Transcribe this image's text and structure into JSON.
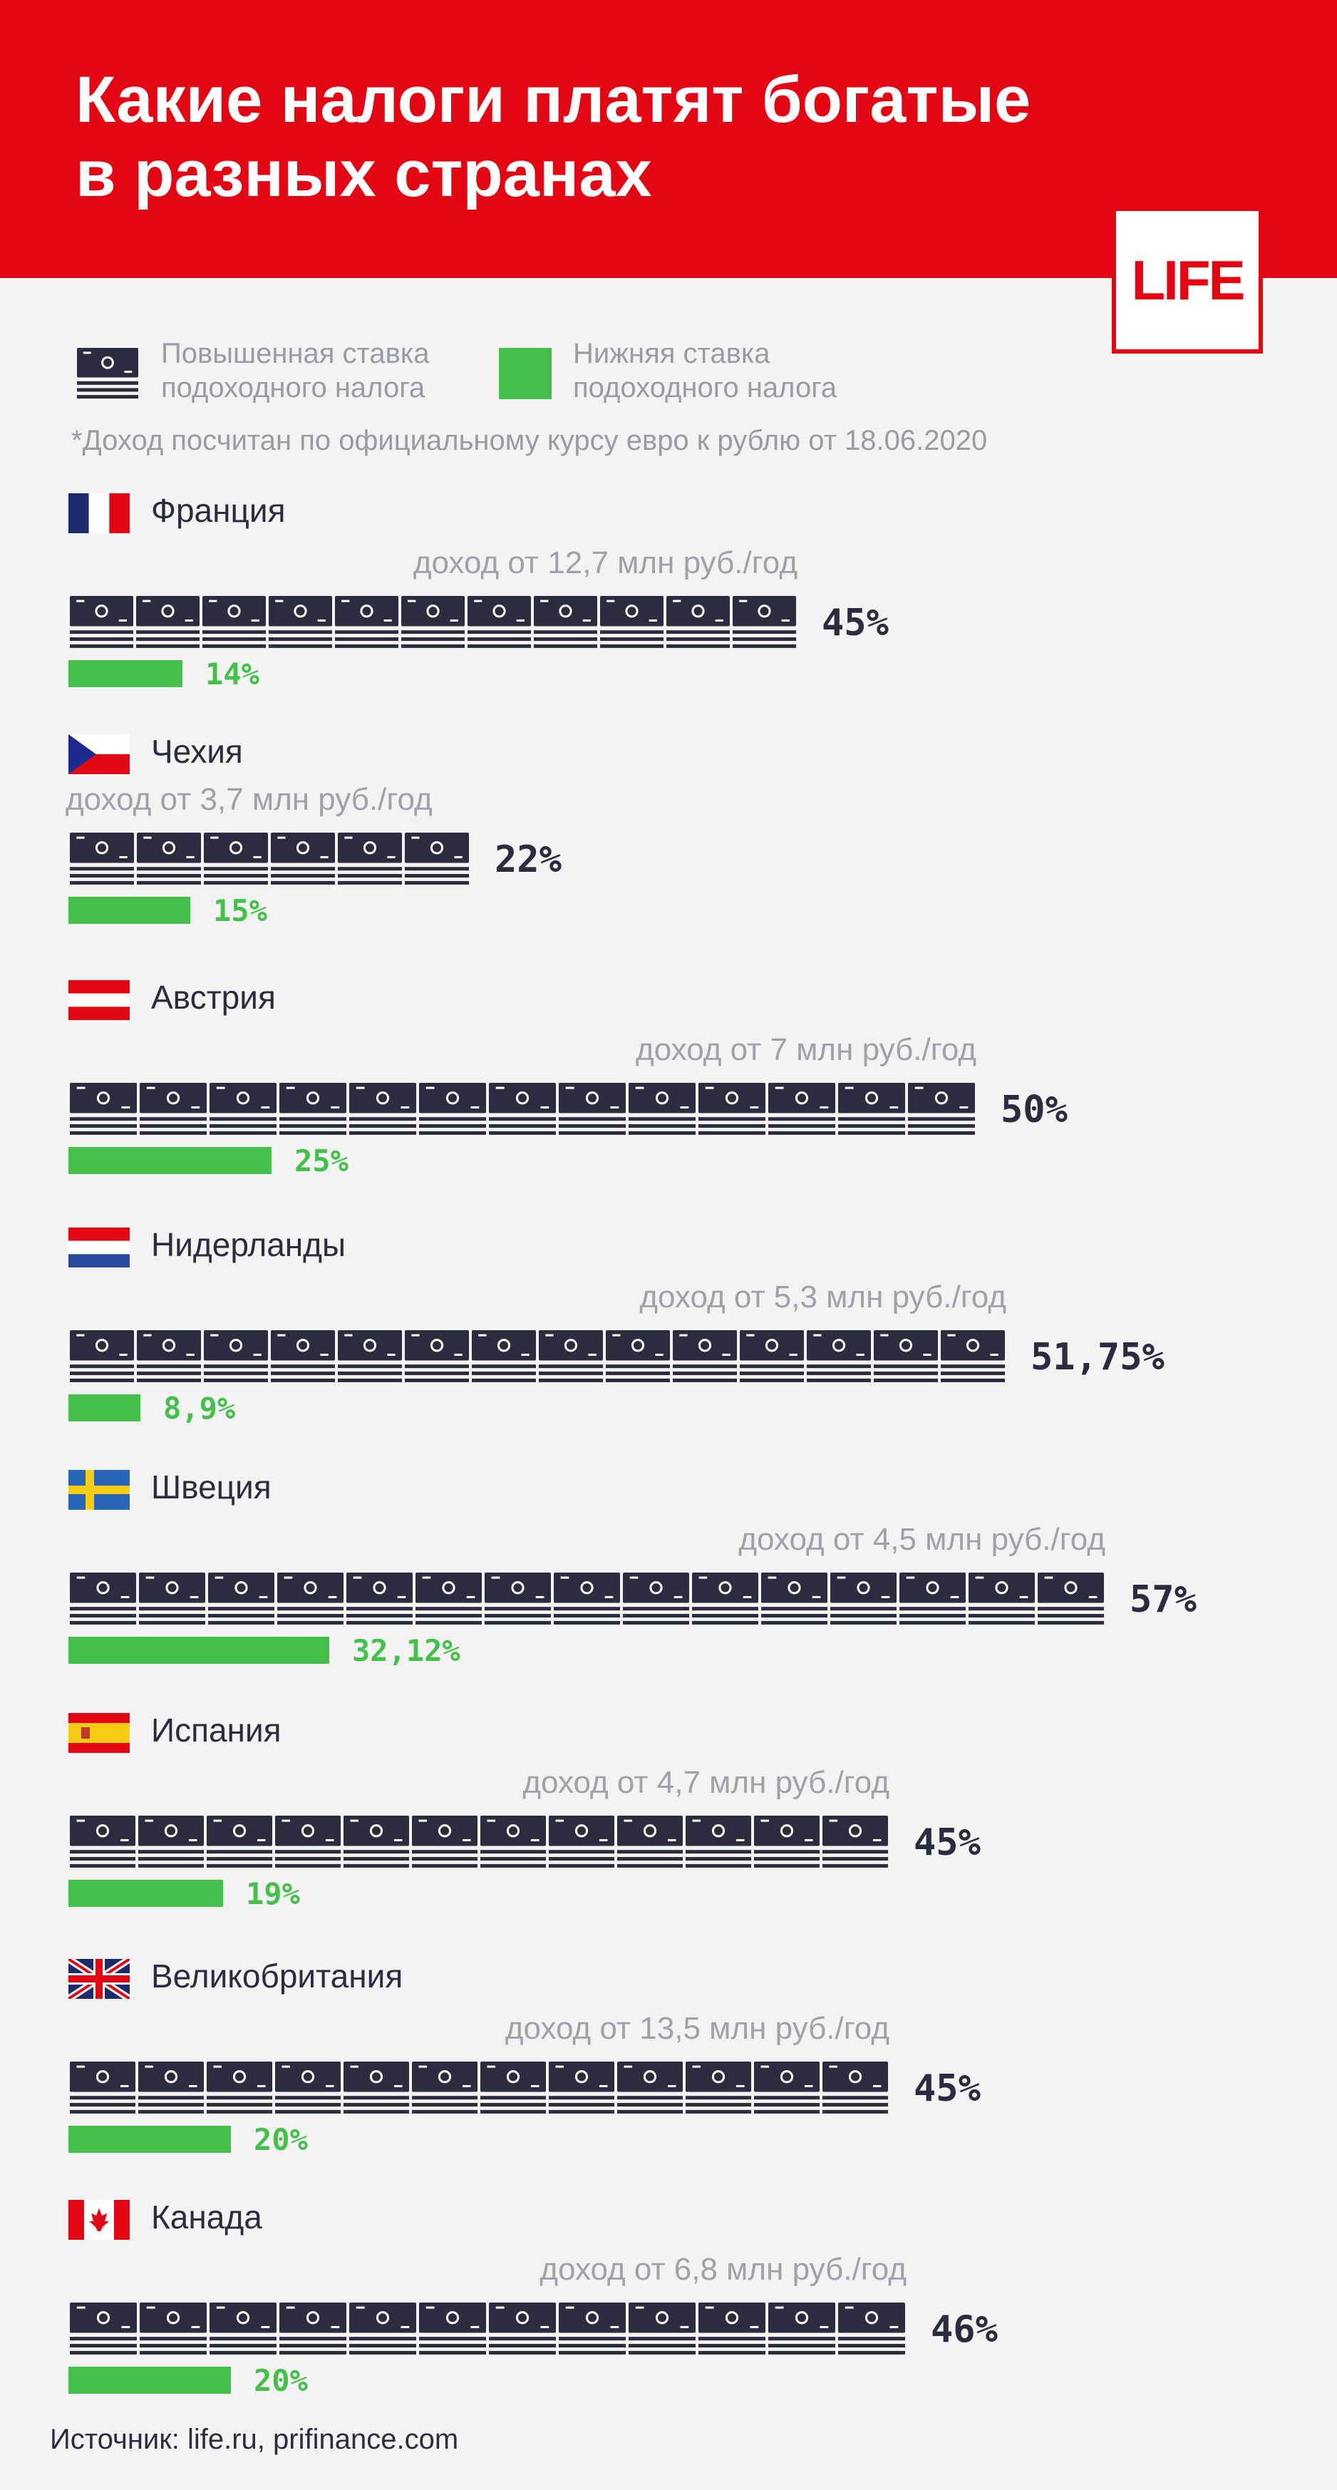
{
  "header": {
    "title": "Какие налоги платят богатые\nв разных странах",
    "logo": "LIFE"
  },
  "legend": {
    "high_label": "Повышенная ставка\nподоходного налога",
    "low_label": "Нижняя ставка\nподоходного налога"
  },
  "note": "*Доход посчитан по официальному курсу евро к рублю от 18.06.2020",
  "source": "Источник: life.ru, prifinance.com",
  "colors": {
    "brand_red": "#e30613",
    "green": "#44c04b",
    "dark": "#2b2d3e",
    "muted": "#9a9ca4"
  },
  "chart_data": {
    "type": "bar",
    "categories": [
      "Франция",
      "Чехия",
      "Австрия",
      "Нидерланды",
      "Швеция",
      "Испания",
      "Великобритания",
      "Канада"
    ],
    "series": [
      {
        "name": "Повышенная ставка подоходного налога",
        "values": [
          45,
          22,
          50,
          51.75,
          57,
          45,
          45,
          46
        ]
      },
      {
        "name": "Нижняя ставка подоходного налога",
        "values": [
          14,
          15,
          25,
          8.9,
          32.12,
          19,
          20,
          20
        ]
      }
    ],
    "countries": [
      {
        "name": "Франция",
        "flag": "france-flag-icon",
        "income": "доход от 12,7 млн руб./год",
        "high": 45,
        "high_label": "45%",
        "low": 14,
        "low_label": "14%"
      },
      {
        "name": "Чехия",
        "flag": "czech-flag-icon",
        "income": "доход от 3,7 млн руб./год",
        "high": 22,
        "high_label": "22%",
        "low": 15,
        "low_label": "15%"
      },
      {
        "name": "Австрия",
        "flag": "austria-flag-icon",
        "income": "доход от 7 млн руб./год",
        "high": 50,
        "high_label": "50%",
        "low": 25,
        "low_label": "25%"
      },
      {
        "name": "Нидерланды",
        "flag": "netherlands-flag-icon",
        "income": "доход от 5,3 млн руб./год",
        "high": 51.75,
        "high_label": "51,75%",
        "low": 8.9,
        "low_label": "8,9%"
      },
      {
        "name": "Швеция",
        "flag": "sweden-flag-icon",
        "income": "доход от 4,5 млн руб./год",
        "high": 57,
        "high_label": "57%",
        "low": 32.12,
        "low_label": "32,12%"
      },
      {
        "name": "Испания",
        "flag": "spain-flag-icon",
        "income": "доход от 4,7 млн руб./год",
        "high": 45,
        "high_label": "45%",
        "low": 19,
        "low_label": "19%"
      },
      {
        "name": "Великобритания",
        "flag": "uk-flag-icon",
        "income": "доход от 13,5 млн руб./год",
        "high": 45,
        "high_label": "45%",
        "low": 20,
        "low_label": "20%"
      },
      {
        "name": "Канада",
        "flag": "canada-flag-icon",
        "income": "доход от 6,8 млн руб./год",
        "high": 46,
        "high_label": "46%",
        "low": 20,
        "low_label": "20%"
      }
    ]
  }
}
